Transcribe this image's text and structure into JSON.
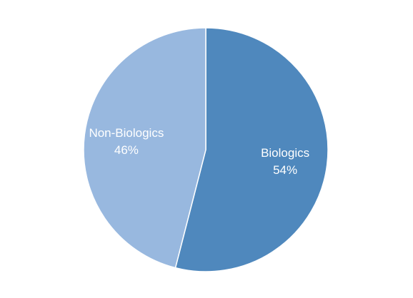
{
  "chart_data": {
    "type": "pie",
    "title": "",
    "start_angle_deg": 0,
    "direction": "clockwise",
    "legend": "none",
    "slices": [
      {
        "label": "Biologics",
        "value": 54,
        "value_label": "54%",
        "color": "#4f88bd"
      },
      {
        "label": "Non-Biologics",
        "value": 46,
        "value_label": "46%",
        "color": "#98b8df"
      }
    ]
  }
}
